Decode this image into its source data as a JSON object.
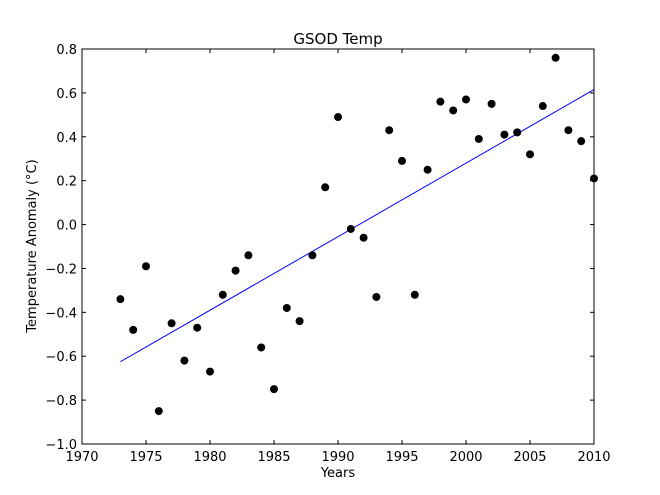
{
  "chart_data": {
    "type": "scatter",
    "title": "GSOD Temp",
    "xlabel": "Years",
    "ylabel": "Temperature Anomaly ($^\\circ$C)",
    "ylabel_display": "Temperature Anomaly (°C)",
    "xlim": [
      1970,
      2010
    ],
    "ylim": [
      -1.0,
      0.8
    ],
    "xticks": [
      1970,
      1975,
      1980,
      1985,
      1990,
      1995,
      2000,
      2005,
      2010
    ],
    "yticks": [
      -1.0,
      -0.8,
      -0.6,
      -0.4,
      -0.2,
      0.0,
      0.2,
      0.4,
      0.6,
      0.8
    ],
    "ytick_labels": [
      "−1.0",
      "−0.8",
      "−0.6",
      "−0.4",
      "−0.2",
      "0.0",
      "0.2",
      "0.4",
      "0.6",
      "0.8"
    ],
    "grid": false,
    "series": [
      {
        "kind": "points",
        "color": "#000000",
        "x": [
          1973,
          1974,
          1975,
          1976,
          1977,
          1978,
          1979,
          1980,
          1981,
          1982,
          1983,
          1984,
          1985,
          1986,
          1987,
          1988,
          1989,
          1990,
          1991,
          1992,
          1993,
          1994,
          1995,
          1996,
          1997,
          1998,
          1999,
          2000,
          2001,
          2002,
          2003,
          2004,
          2005,
          2006,
          2007,
          2008,
          2009,
          2010
        ],
        "y": [
          -0.34,
          -0.48,
          -0.19,
          -0.85,
          -0.45,
          -0.62,
          -0.47,
          -0.67,
          -0.32,
          -0.21,
          -0.14,
          -0.56,
          -0.75,
          -0.38,
          -0.44,
          -0.14,
          0.17,
          0.49,
          -0.02,
          -0.06,
          -0.33,
          0.43,
          0.29,
          -0.32,
          0.25,
          0.56,
          0.52,
          0.57,
          0.39,
          0.55,
          0.41,
          0.42,
          0.32,
          0.54,
          0.76,
          0.43,
          0.38,
          0.21
        ]
      },
      {
        "kind": "trend",
        "color": "#0000ff",
        "x": [
          1973,
          2010
        ],
        "y": [
          -0.625,
          0.615
        ]
      }
    ]
  }
}
